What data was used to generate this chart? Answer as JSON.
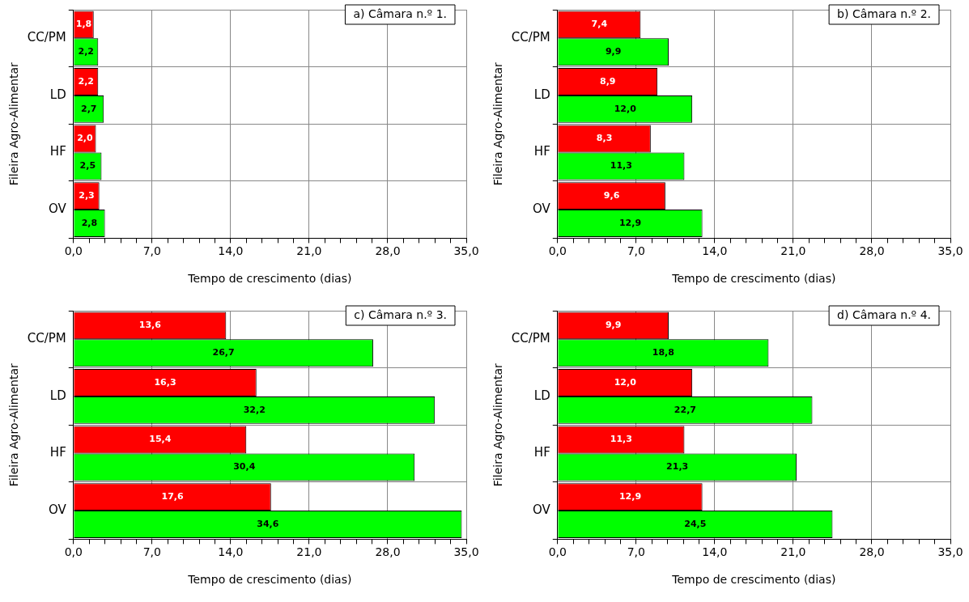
{
  "chart_data": [
    {
      "type": "bar",
      "orientation": "horizontal",
      "title": "a) Câmara n.º 1.",
      "xlabel": "Tempo de crescimento (dias)",
      "ylabel": "Fileira Agro-Alimentar",
      "categories": [
        "CC/PM",
        "LD",
        "HF",
        "OV"
      ],
      "series": [
        {
          "color": "#ff0000",
          "values": [
            1.8,
            2.2,
            2.0,
            2.3
          ]
        },
        {
          "color": "#00ff00",
          "values": [
            2.2,
            2.7,
            2.5,
            2.8
          ]
        }
      ],
      "xlim": [
        0,
        35
      ],
      "xticks": [
        {
          "value": 0,
          "label": "0,0"
        },
        {
          "value": 1.4,
          "label": null
        },
        {
          "value": 2.8,
          "label": null
        },
        {
          "value": 4.2,
          "label": null
        },
        {
          "value": 5.6,
          "label": null
        },
        {
          "value": 7,
          "label": "7,0"
        },
        {
          "value": 8.4,
          "label": null
        },
        {
          "value": 9.8,
          "label": null
        },
        {
          "value": 11.2,
          "label": null
        },
        {
          "value": 12.6,
          "label": null
        },
        {
          "value": 14,
          "label": "14,0"
        },
        {
          "value": 15.4,
          "label": null
        },
        {
          "value": 16.8,
          "label": null
        },
        {
          "value": 18.2,
          "label": null
        },
        {
          "value": 19.6,
          "label": null
        },
        {
          "value": 21,
          "label": "21,0"
        },
        {
          "value": 22.4,
          "label": null
        },
        {
          "value": 23.8,
          "label": null
        },
        {
          "value": 25.2,
          "label": null
        },
        {
          "value": 26.6,
          "label": null
        },
        {
          "value": 28,
          "label": "28,0"
        },
        {
          "value": 29.4,
          "label": null
        },
        {
          "value": 30.8,
          "label": null
        },
        {
          "value": 32.2,
          "label": null
        },
        {
          "value": 33.6,
          "label": null
        },
        {
          "value": 35,
          "label": "35,0"
        }
      ],
      "grid": true,
      "value_labels": [
        [
          "1,8",
          "2,2",
          "2,0",
          "2,3"
        ],
        [
          "2,2",
          "2,7",
          "2,5",
          "2,8"
        ]
      ]
    },
    {
      "type": "bar",
      "orientation": "horizontal",
      "title": "b) Câmara n.º 2.",
      "xlabel": "Tempo de crescimento (dias)",
      "ylabel": "Fileira Agro-Alimentar",
      "categories": [
        "CC/PM",
        "LD",
        "HF",
        "OV"
      ],
      "series": [
        {
          "color": "#ff0000",
          "values": [
            7.4,
            8.9,
            8.3,
            9.6
          ]
        },
        {
          "color": "#00ff00",
          "values": [
            9.9,
            12.0,
            11.3,
            12.9
          ]
        }
      ],
      "xlim": [
        0,
        35
      ],
      "xticks": [
        {
          "value": 0,
          "label": "0,0"
        },
        {
          "value": 1.4,
          "label": null
        },
        {
          "value": 2.8,
          "label": null
        },
        {
          "value": 4.2,
          "label": null
        },
        {
          "value": 5.6,
          "label": null
        },
        {
          "value": 7,
          "label": "7,0"
        },
        {
          "value": 8.4,
          "label": null
        },
        {
          "value": 9.8,
          "label": null
        },
        {
          "value": 11.2,
          "label": null
        },
        {
          "value": 12.6,
          "label": null
        },
        {
          "value": 14,
          "label": "14,0"
        },
        {
          "value": 15.4,
          "label": null
        },
        {
          "value": 16.8,
          "label": null
        },
        {
          "value": 18.2,
          "label": null
        },
        {
          "value": 19.6,
          "label": null
        },
        {
          "value": 21,
          "label": "21,0"
        },
        {
          "value": 22.4,
          "label": null
        },
        {
          "value": 23.8,
          "label": null
        },
        {
          "value": 25.2,
          "label": null
        },
        {
          "value": 26.6,
          "label": null
        },
        {
          "value": 28,
          "label": "28,0"
        },
        {
          "value": 29.4,
          "label": null
        },
        {
          "value": 30.8,
          "label": null
        },
        {
          "value": 32.2,
          "label": null
        },
        {
          "value": 33.6,
          "label": null
        },
        {
          "value": 35,
          "label": "35,0"
        }
      ],
      "grid": true,
      "value_labels": [
        [
          "7,4",
          "8,9",
          "8,3",
          "9,6"
        ],
        [
          "9,9",
          "12,0",
          "11,3",
          "12,9"
        ]
      ]
    },
    {
      "type": "bar",
      "orientation": "horizontal",
      "title": "c) Câmara n.º 3.",
      "xlabel": "Tempo de crescimento (dias)",
      "ylabel": "Fileira Agro-Alimentar",
      "categories": [
        "CC/PM",
        "LD",
        "HF",
        "OV"
      ],
      "series": [
        {
          "color": "#ff0000",
          "values": [
            13.6,
            16.3,
            15.4,
            17.6
          ]
        },
        {
          "color": "#00ff00",
          "values": [
            26.7,
            32.2,
            30.4,
            34.6
          ]
        }
      ],
      "xlim": [
        0,
        35
      ],
      "xticks": [
        {
          "value": 0,
          "label": "0,0"
        },
        {
          "value": 1.4,
          "label": null
        },
        {
          "value": 2.8,
          "label": null
        },
        {
          "value": 4.2,
          "label": null
        },
        {
          "value": 5.6,
          "label": null
        },
        {
          "value": 7,
          "label": "7,0"
        },
        {
          "value": 8.4,
          "label": null
        },
        {
          "value": 9.8,
          "label": null
        },
        {
          "value": 11.2,
          "label": null
        },
        {
          "value": 12.6,
          "label": null
        },
        {
          "value": 14,
          "label": "14,0"
        },
        {
          "value": 15.4,
          "label": null
        },
        {
          "value": 16.8,
          "label": null
        },
        {
          "value": 18.2,
          "label": null
        },
        {
          "value": 19.6,
          "label": null
        },
        {
          "value": 21,
          "label": "21,0"
        },
        {
          "value": 22.4,
          "label": null
        },
        {
          "value": 23.8,
          "label": null
        },
        {
          "value": 25.2,
          "label": null
        },
        {
          "value": 26.6,
          "label": null
        },
        {
          "value": 28,
          "label": "28,0"
        },
        {
          "value": 29.4,
          "label": null
        },
        {
          "value": 30.8,
          "label": null
        },
        {
          "value": 32.2,
          "label": null
        },
        {
          "value": 33.6,
          "label": null
        },
        {
          "value": 35,
          "label": "35,0"
        }
      ],
      "grid": true,
      "value_labels": [
        [
          "13,6",
          "16,3",
          "15,4",
          "17,6"
        ],
        [
          "26,7",
          "32,2",
          "30,4",
          "34,6"
        ]
      ]
    },
    {
      "type": "bar",
      "orientation": "horizontal",
      "title": "d) Câmara n.º 4.",
      "xlabel": "Tempo de crescimento (dias)",
      "ylabel": "Fileira Agro-Alimentar",
      "categories": [
        "CC/PM",
        "LD",
        "HF",
        "OV"
      ],
      "series": [
        {
          "color": "#ff0000",
          "values": [
            9.9,
            12.0,
            11.3,
            12.9
          ]
        },
        {
          "color": "#00ff00",
          "values": [
            18.8,
            22.7,
            21.3,
            24.5
          ]
        }
      ],
      "xlim": [
        0,
        35
      ],
      "xticks": [
        {
          "value": 0,
          "label": "0,0"
        },
        {
          "value": 1.4,
          "label": null
        },
        {
          "value": 2.8,
          "label": null
        },
        {
          "value": 4.2,
          "label": null
        },
        {
          "value": 5.6,
          "label": null
        },
        {
          "value": 7,
          "label": "7,0"
        },
        {
          "value": 8.4,
          "label": null
        },
        {
          "value": 9.8,
          "label": null
        },
        {
          "value": 11.2,
          "label": null
        },
        {
          "value": 12.6,
          "label": null
        },
        {
          "value": 14,
          "label": "14,0"
        },
        {
          "value": 15.4,
          "label": null
        },
        {
          "value": 16.8,
          "label": null
        },
        {
          "value": 18.2,
          "label": null
        },
        {
          "value": 19.6,
          "label": null
        },
        {
          "value": 21,
          "label": "21,0"
        },
        {
          "value": 22.4,
          "label": null
        },
        {
          "value": 23.8,
          "label": null
        },
        {
          "value": 25.2,
          "label": null
        },
        {
          "value": 26.6,
          "label": null
        },
        {
          "value": 28,
          "label": "28,0"
        },
        {
          "value": 29.4,
          "label": null
        },
        {
          "value": 30.8,
          "label": null
        },
        {
          "value": 32.2,
          "label": null
        },
        {
          "value": 33.6,
          "label": null
        },
        {
          "value": 35,
          "label": "35,0"
        }
      ],
      "grid": true,
      "value_labels": [
        [
          "9,9",
          "12,0",
          "11,3",
          "12,9"
        ],
        [
          "18,8",
          "22,7",
          "21,3",
          "24,5"
        ]
      ]
    }
  ]
}
